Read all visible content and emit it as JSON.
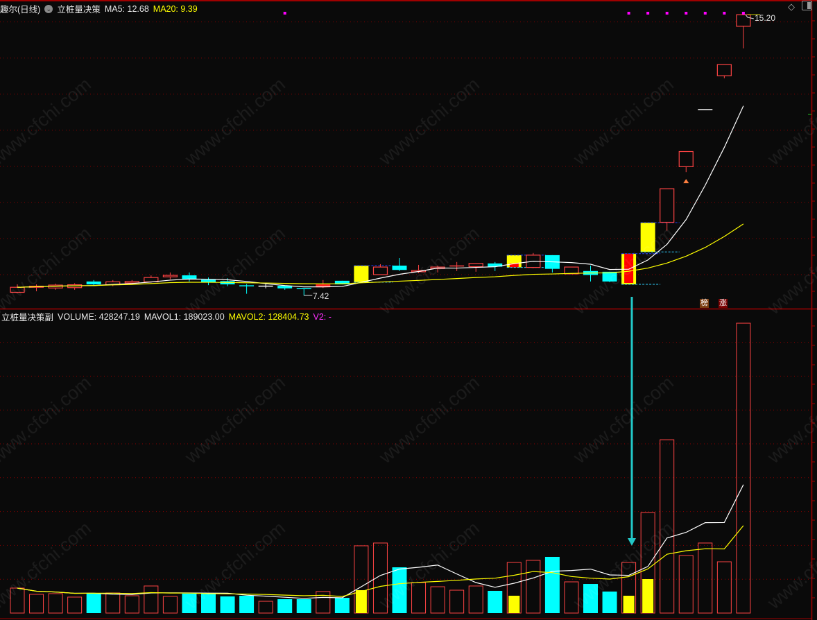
{
  "header": {
    "stock_name": "趣尔(日线)",
    "indicator_name": "立桩量决策",
    "ma5_label": "MA5: 12.68",
    "ma20_label": "MA20: 9.39"
  },
  "volume_header": {
    "indicator_name": "立桩量决策副",
    "volume_label": "VOLUME: 428247.19",
    "mavol1_label": "MAVOL1: 189023.00",
    "mavol2_label": "MAVOL2: 128404.73",
    "v2_label": "V2: -"
  },
  "annotations": {
    "high_label": "15.20",
    "low_label": "7.42",
    "tag_list": "榜",
    "tag_rise": "涨"
  },
  "watermark": "www.cfchi.com",
  "icons": {
    "diamond": "diamond-icon",
    "panel": "panel-toggle-icon",
    "dropdown": "chevron-down-icon"
  },
  "colors": {
    "up": "#ff4444",
    "down": "#00ffff",
    "ma5": "#ffffff",
    "ma20": "#ffff00",
    "highlight": "#ffff00",
    "signal": "#ff00ff",
    "grid": "#8b0000",
    "arrow": "#22c8c8"
  },
  "chart_data": [
    {
      "type": "candlestick",
      "indicators": [
        "MA5",
        "MA20"
      ],
      "ylim": [
        7.0,
        15.5
      ],
      "grid_prices": [
        8,
        9,
        10,
        11,
        12,
        13,
        14,
        15
      ],
      "signal_dots_at": [
        14,
        32,
        33,
        34,
        35,
        36,
        37,
        38
      ],
      "triangle_marker_at": 35,
      "candles": [
        {
          "o": 7.51,
          "h": 7.73,
          "l": 7.49,
          "c": 7.65
        },
        {
          "o": 7.65,
          "h": 7.73,
          "l": 7.54,
          "c": 7.68
        },
        {
          "o": 7.63,
          "h": 7.75,
          "l": 7.58,
          "c": 7.71
        },
        {
          "o": 7.64,
          "h": 7.76,
          "l": 7.58,
          "c": 7.72
        },
        {
          "o": 7.81,
          "h": 7.85,
          "l": 7.69,
          "c": 7.73
        },
        {
          "o": 7.72,
          "h": 7.85,
          "l": 7.68,
          "c": 7.8
        },
        {
          "o": 7.77,
          "h": 7.85,
          "l": 7.74,
          "c": 7.81
        },
        {
          "o": 7.8,
          "h": 7.98,
          "l": 7.78,
          "c": 7.92
        },
        {
          "o": 7.94,
          "h": 8.06,
          "l": 7.87,
          "c": 7.98
        },
        {
          "o": 7.98,
          "h": 8.06,
          "l": 7.81,
          "c": 7.88
        },
        {
          "o": 7.86,
          "h": 7.92,
          "l": 7.71,
          "c": 7.78
        },
        {
          "o": 7.82,
          "h": 7.9,
          "l": 7.68,
          "c": 7.73
        },
        {
          "o": 7.69,
          "h": 7.74,
          "l": 7.47,
          "c": 7.68
        },
        {
          "o": 7.68,
          "h": 7.74,
          "l": 7.62,
          "c": 7.68,
          "color": "white"
        },
        {
          "o": 7.69,
          "h": 7.7,
          "l": 7.58,
          "c": 7.62
        },
        {
          "o": 7.61,
          "h": 7.61,
          "l": 7.42,
          "c": 7.6
        },
        {
          "o": 7.65,
          "h": 7.85,
          "l": 7.63,
          "c": 7.73,
          "fill": "red"
        },
        {
          "o": 7.83,
          "h": 7.83,
          "l": 7.73,
          "c": 7.73
        },
        {
          "o": 7.79,
          "h": 8.25,
          "l": 7.79,
          "c": 8.25,
          "hl": true
        },
        {
          "o": 8.0,
          "h": 8.29,
          "l": 8.0,
          "c": 8.21
        },
        {
          "o": 8.25,
          "h": 8.46,
          "l": 8.1,
          "c": 8.13
        },
        {
          "o": 8.08,
          "h": 8.27,
          "l": 8.04,
          "c": 8.115
        },
        {
          "o": 8.17,
          "h": 8.25,
          "l": 8.06,
          "c": 8.21
        },
        {
          "o": 8.24,
          "h": 8.35,
          "l": 8.1,
          "c": 8.24
        },
        {
          "o": 8.22,
          "h": 8.31,
          "l": 8.08,
          "c": 8.31
        },
        {
          "o": 8.31,
          "h": 8.35,
          "l": 8.1,
          "c": 8.22
        },
        {
          "o": 8.2,
          "h": 8.6,
          "l": 8.2,
          "c": 8.54,
          "hl": true,
          "inner": [
            8.2,
            8.31
          ]
        },
        {
          "o": 8.2,
          "h": 8.6,
          "l": 8.18,
          "c": 8.54
        },
        {
          "o": 8.54,
          "h": 8.54,
          "l": 8.06,
          "c": 8.16
        },
        {
          "o": 8.02,
          "h": 8.21,
          "l": 8.02,
          "c": 8.21
        },
        {
          "o": 8.1,
          "h": 8.25,
          "l": 7.81,
          "c": 7.99
        },
        {
          "o": 8.08,
          "h": 8.08,
          "l": 7.79,
          "c": 7.81
        },
        {
          "o": 7.73,
          "h": 8.58,
          "l": 7.73,
          "c": 8.58,
          "hl": true,
          "inner": [
            7.77,
            8.58
          ]
        },
        {
          "o": 8.63,
          "h": 9.44,
          "l": 8.63,
          "c": 9.44,
          "hl": true
        },
        {
          "o": 9.45,
          "h": 10.38,
          "l": 9.22,
          "c": 10.38
        },
        {
          "o": 10.99,
          "h": 11.41,
          "l": 10.84,
          "c": 11.41
        },
        {
          "o": 12.57,
          "h": 12.57,
          "l": 12.57,
          "c": 12.57,
          "color": "white"
        },
        {
          "o": 13.51,
          "h": 13.82,
          "l": 13.44,
          "c": 13.82
        },
        {
          "o": 14.88,
          "h": 15.2,
          "l": 14.27,
          "c": 15.2
        }
      ]
    },
    {
      "type": "bar",
      "indicators": [
        "MAVOL1",
        "MAVOL2"
      ],
      "ylim": [
        0,
        450000
      ],
      "grid_step": 50000,
      "volumes": [
        36900,
        27700,
        28700,
        23600,
        29700,
        29700,
        25600,
        40000,
        24600,
        28700,
        28700,
        24600,
        25600,
        17400,
        20500,
        20500,
        31800,
        22500,
        99400,
        103500,
        67600,
        45100,
        38900,
        33800,
        40000,
        32800,
        74800,
        77900,
        83000,
        46100,
        43000,
        31800,
        74800,
        148500,
        256100,
        85000,
        103500,
        75800,
        428247.19
      ],
      "yellow_inner": {
        "18": 33800,
        "26": 25600,
        "32": 25600,
        "33": 50200
      }
    }
  ]
}
